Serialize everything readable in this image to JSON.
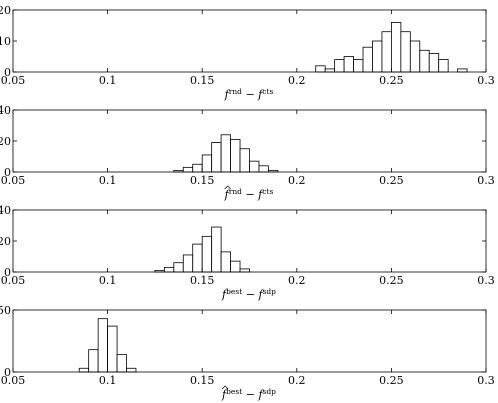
{
  "chart_data": [
    {
      "type": "bar",
      "subtype": "histogram",
      "bin_width": 0.005,
      "xlim": [
        0.05,
        0.3
      ],
      "ylim": [
        0,
        20
      ],
      "xticks": [
        "0.05",
        "0.1",
        "0.15",
        "0.2",
        "0.25",
        "0.3"
      ],
      "yticks": [
        "0",
        "10",
        "20"
      ],
      "xlabel": {
        "a": "f",
        "a_sup": "rnd",
        "op": "−",
        "b": "f",
        "b_sup": "cts",
        "hat": false
      },
      "bins": [
        {
          "x": 0.2125,
          "count": 2
        },
        {
          "x": 0.2175,
          "count": 1
        },
        {
          "x": 0.2225,
          "count": 4
        },
        {
          "x": 0.2275,
          "count": 5
        },
        {
          "x": 0.2325,
          "count": 4
        },
        {
          "x": 0.2375,
          "count": 8
        },
        {
          "x": 0.2425,
          "count": 10
        },
        {
          "x": 0.2475,
          "count": 13
        },
        {
          "x": 0.2525,
          "count": 16
        },
        {
          "x": 0.2575,
          "count": 13
        },
        {
          "x": 0.2625,
          "count": 10
        },
        {
          "x": 0.2675,
          "count": 7
        },
        {
          "x": 0.2725,
          "count": 6
        },
        {
          "x": 0.2775,
          "count": 4
        },
        {
          "x": 0.2875,
          "count": 1
        }
      ]
    },
    {
      "type": "bar",
      "subtype": "histogram",
      "bin_width": 0.005,
      "xlim": [
        0.05,
        0.3
      ],
      "ylim": [
        0,
        40
      ],
      "xticks": [
        "0.05",
        "0.1",
        "0.15",
        "0.2",
        "0.25",
        "0.3"
      ],
      "yticks": [
        "0",
        "20",
        "40"
      ],
      "xlabel": {
        "a": "f",
        "a_sup": "rnd",
        "op": "−",
        "b": "f",
        "b_sup": "cts",
        "hat": true
      },
      "bins": [
        {
          "x": 0.1375,
          "count": 1
        },
        {
          "x": 0.1425,
          "count": 3
        },
        {
          "x": 0.1475,
          "count": 5
        },
        {
          "x": 0.1525,
          "count": 11
        },
        {
          "x": 0.1575,
          "count": 19
        },
        {
          "x": 0.1625,
          "count": 24
        },
        {
          "x": 0.1675,
          "count": 21
        },
        {
          "x": 0.1725,
          "count": 15
        },
        {
          "x": 0.1775,
          "count": 7
        },
        {
          "x": 0.1825,
          "count": 4
        },
        {
          "x": 0.1875,
          "count": 1
        }
      ]
    },
    {
      "type": "bar",
      "subtype": "histogram",
      "bin_width": 0.005,
      "xlim": [
        0.05,
        0.3
      ],
      "ylim": [
        0,
        40
      ],
      "xticks": [
        "0.05",
        "0.1",
        "0.15",
        "0.2",
        "0.25",
        "0.3"
      ],
      "yticks": [
        "0",
        "20",
        "40"
      ],
      "xlabel": {
        "a": "f",
        "a_sup": "best",
        "op": "−",
        "b": "f",
        "b_sup": "sdp",
        "hat": false
      },
      "bins": [
        {
          "x": 0.1275,
          "count": 1
        },
        {
          "x": 0.1325,
          "count": 3
        },
        {
          "x": 0.1375,
          "count": 6
        },
        {
          "x": 0.1425,
          "count": 11
        },
        {
          "x": 0.1475,
          "count": 18
        },
        {
          "x": 0.1525,
          "count": 23
        },
        {
          "x": 0.1575,
          "count": 29
        },
        {
          "x": 0.1625,
          "count": 13
        },
        {
          "x": 0.1675,
          "count": 7
        },
        {
          "x": 0.1725,
          "count": 2
        }
      ]
    },
    {
      "type": "bar",
      "subtype": "histogram",
      "bin_width": 0.005,
      "xlim": [
        0.05,
        0.3
      ],
      "ylim": [
        0,
        50
      ],
      "xticks": [
        "0.05",
        "0.1",
        "0.15",
        "0.2",
        "0.25",
        "0.3"
      ],
      "yticks": [
        "0",
        "50"
      ],
      "xlabel": {
        "a": "f",
        "a_sup": "best",
        "op": "−",
        "b": "f",
        "b_sup": "sdp",
        "hat": true
      },
      "bins": [
        {
          "x": 0.0875,
          "count": 3
        },
        {
          "x": 0.0925,
          "count": 18
        },
        {
          "x": 0.0975,
          "count": 43
        },
        {
          "x": 0.1025,
          "count": 37
        },
        {
          "x": 0.1075,
          "count": 14
        },
        {
          "x": 0.1125,
          "count": 3
        }
      ]
    }
  ]
}
